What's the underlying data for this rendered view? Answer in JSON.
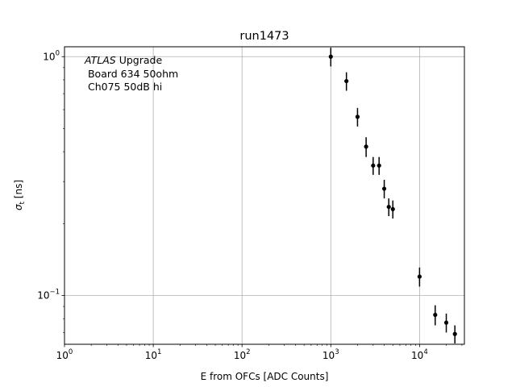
{
  "chart_data": {
    "type": "scatter",
    "title": "run1473",
    "xlabel": "E from OFCs [ADC Counts]",
    "ylabel": "σ",
    "ylabel_sub": "t",
    "ylabel_unit": "[ns]",
    "xscale": "log",
    "yscale": "log",
    "xlim": [
      1,
      32000
    ],
    "ylim": [
      0.0625,
      1.1
    ],
    "grid": true,
    "x_ticks": [
      {
        "value": 1,
        "base": "10",
        "exp": "0"
      },
      {
        "value": 10,
        "base": "10",
        "exp": "1"
      },
      {
        "value": 100,
        "base": "10",
        "exp": "2"
      },
      {
        "value": 1000,
        "base": "10",
        "exp": "3"
      },
      {
        "value": 10000,
        "base": "10",
        "exp": "4"
      }
    ],
    "y_ticks": [
      {
        "value": 0.1,
        "base": "10",
        "exp": "−1"
      },
      {
        "value": 1,
        "base": "10",
        "exp": "0"
      }
    ],
    "annotation": {
      "line1_italic": "ATLAS",
      "line1_rest": " Upgrade",
      "line2": " Board 634 50ohm",
      "line3": " Ch075 50dB hi"
    },
    "color": "#000000",
    "points": [
      {
        "x": 1000,
        "y": 1.0,
        "err": 0.09
      },
      {
        "x": 1500,
        "y": 0.79,
        "err": 0.07
      },
      {
        "x": 2000,
        "y": 0.56,
        "err": 0.05
      },
      {
        "x": 2500,
        "y": 0.42,
        "err": 0.04
      },
      {
        "x": 3000,
        "y": 0.35,
        "err": 0.03
      },
      {
        "x": 3500,
        "y": 0.35,
        "err": 0.03
      },
      {
        "x": 4000,
        "y": 0.28,
        "err": 0.025
      },
      {
        "x": 4500,
        "y": 0.235,
        "err": 0.02
      },
      {
        "x": 5000,
        "y": 0.23,
        "err": 0.02
      },
      {
        "x": 10000,
        "y": 0.12,
        "err": 0.011
      },
      {
        "x": 15000,
        "y": 0.083,
        "err": 0.008
      },
      {
        "x": 20000,
        "y": 0.077,
        "err": 0.007
      },
      {
        "x": 25000,
        "y": 0.069,
        "err": 0.006
      }
    ]
  }
}
